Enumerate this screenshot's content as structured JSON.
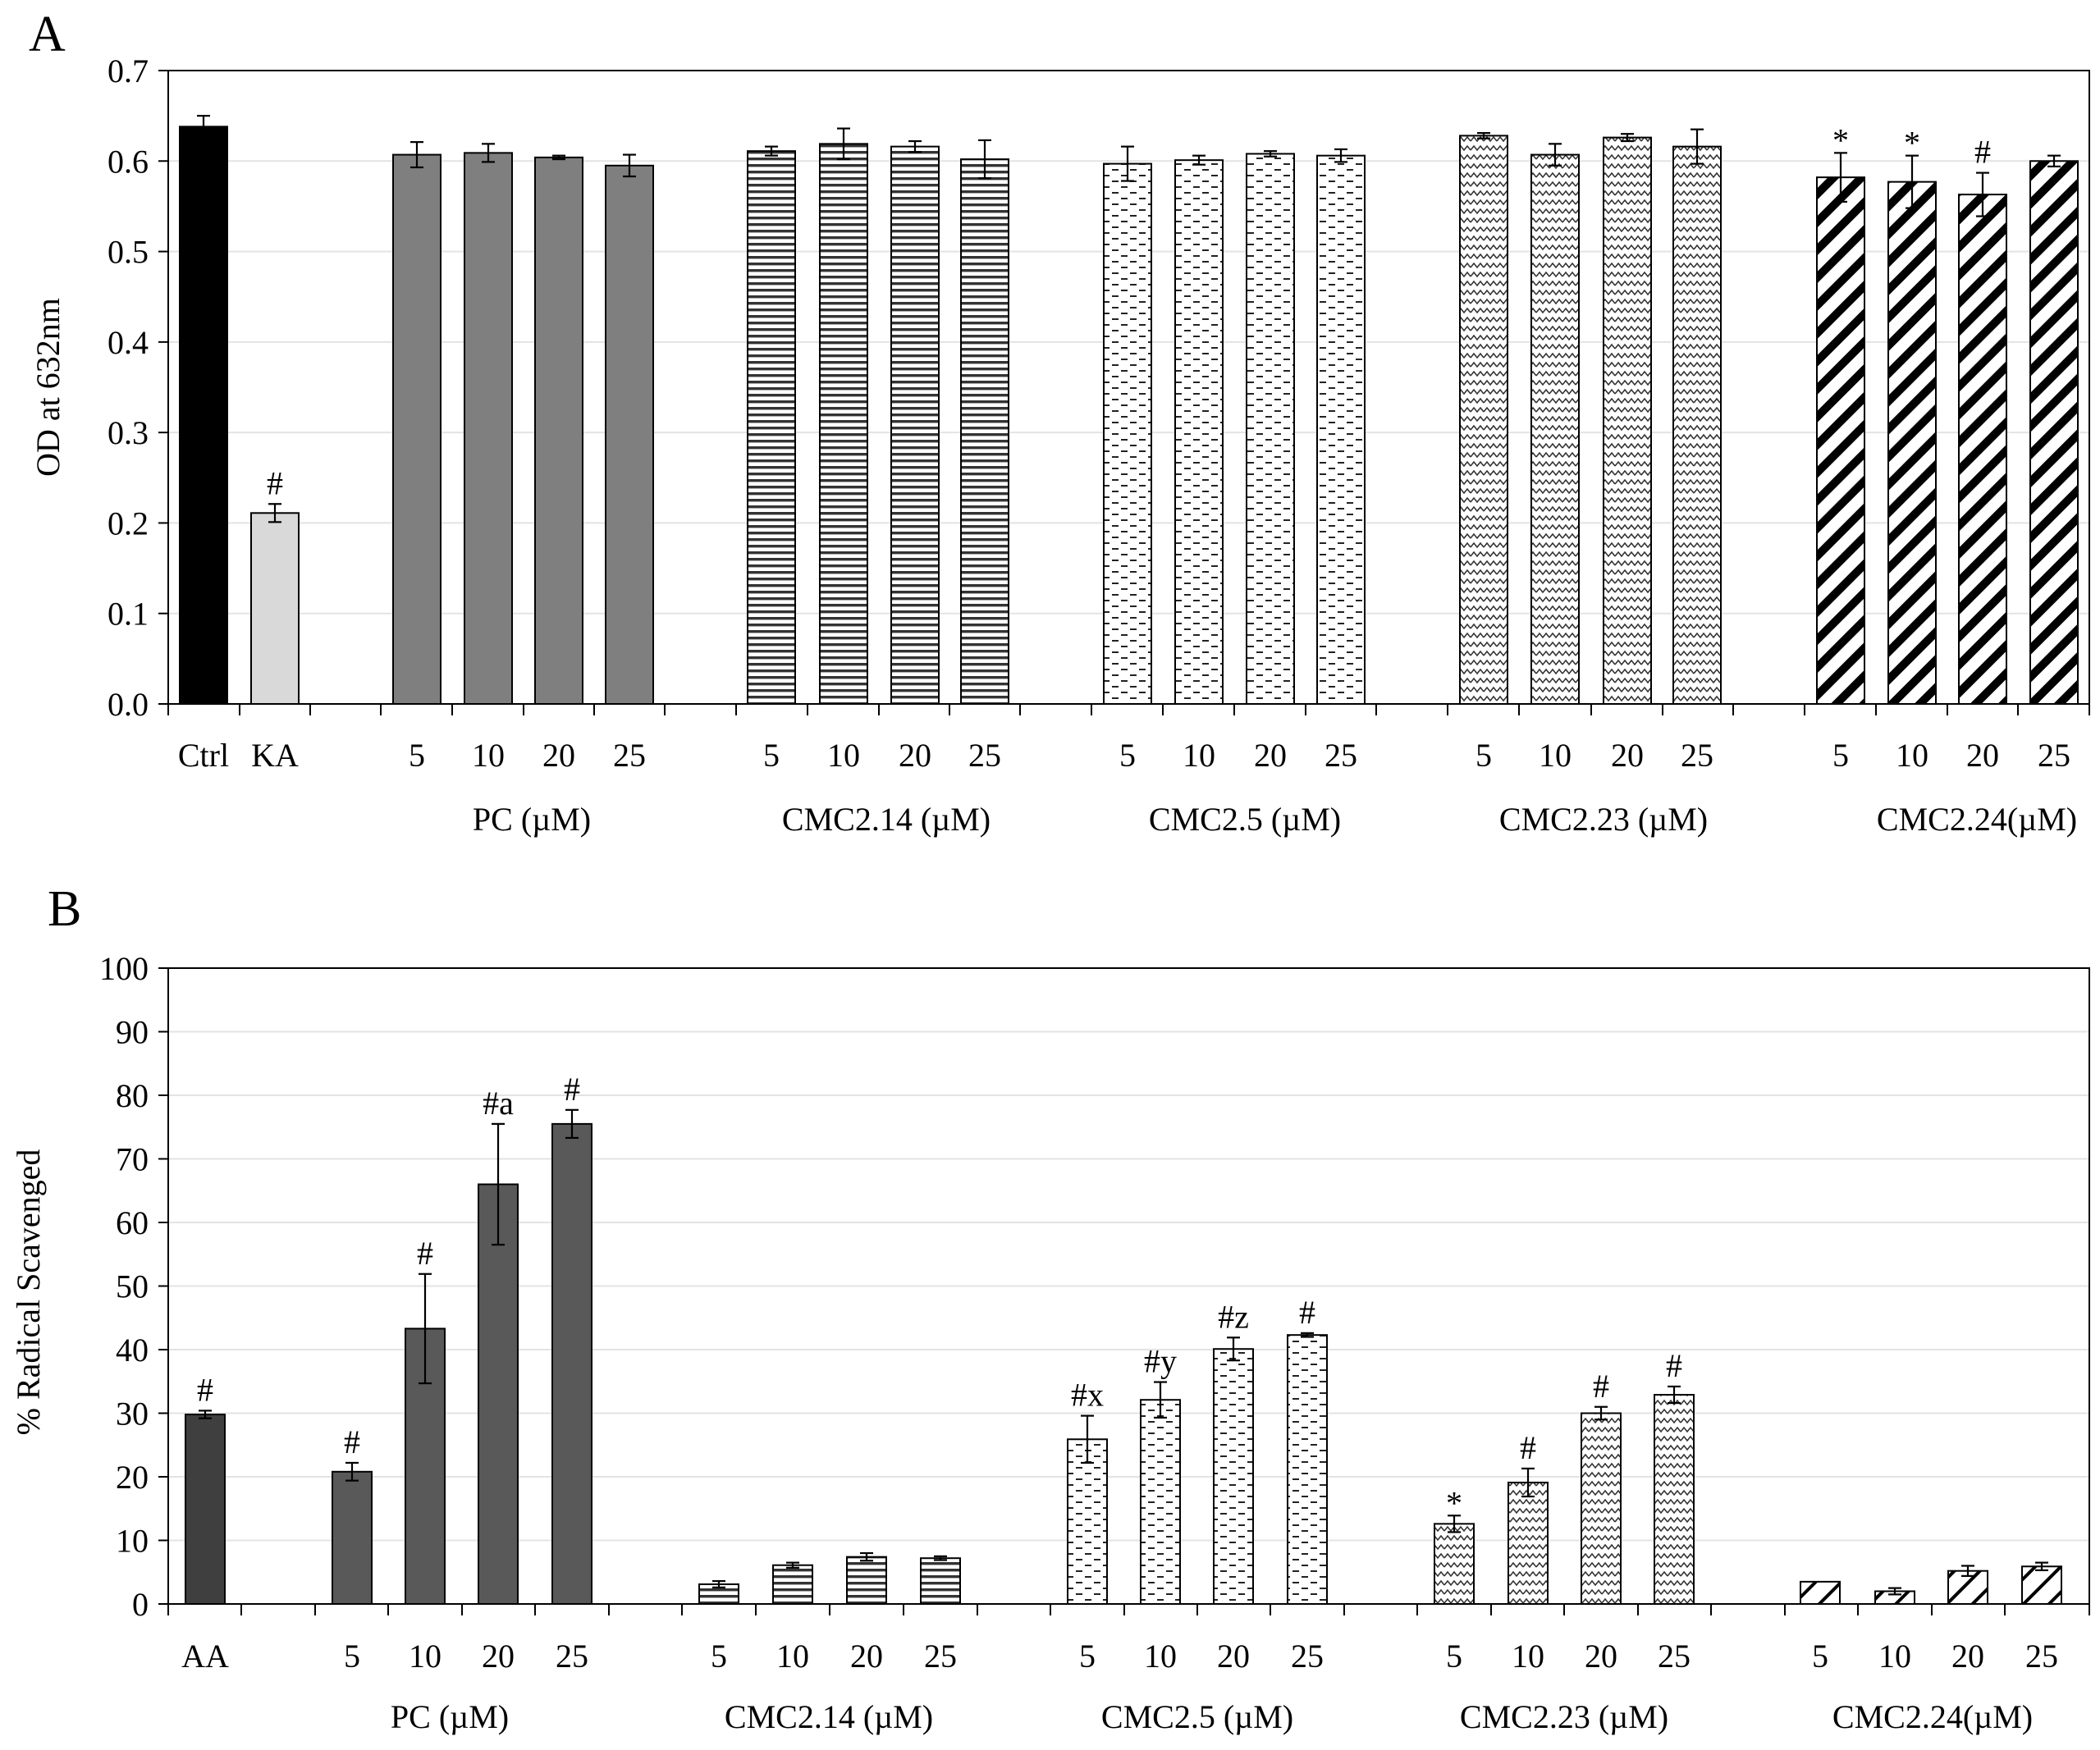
{
  "chart_data": [
    {
      "panel": "A",
      "type": "bar",
      "ylabel": "OD at 632nm",
      "ylim": [
        0,
        0.7
      ],
      "yticks": [
        "0.0",
        "0.1",
        "0.2",
        "0.3",
        "0.4",
        "0.5",
        "0.6",
        "0.7"
      ],
      "grid": true,
      "groups": [
        {
          "name": "",
          "style": "black",
          "bars": [
            {
              "label": "Ctrl",
              "value": 0.638,
              "error": 0.012,
              "annotation": ""
            }
          ]
        },
        {
          "name": "",
          "style": "lightgray",
          "bars": [
            {
              "label": "KA",
              "value": 0.211,
              "error": 0.01,
              "annotation": "#"
            }
          ]
        },
        {
          "name": "PC (µM)",
          "style": "gray",
          "bars": [
            {
              "label": "5",
              "value": 0.607,
              "error": 0.014,
              "annotation": ""
            },
            {
              "label": "10",
              "value": 0.609,
              "error": 0.01,
              "annotation": ""
            },
            {
              "label": "20",
              "value": 0.604,
              "error": 0.002,
              "annotation": ""
            },
            {
              "label": "25",
              "value": 0.595,
              "error": 0.012,
              "annotation": ""
            }
          ]
        },
        {
          "name": "CMC2.14 (µM)",
          "style": "hlines",
          "bars": [
            {
              "label": "5",
              "value": 0.611,
              "error": 0.005,
              "annotation": ""
            },
            {
              "label": "10",
              "value": 0.619,
              "error": 0.017,
              "annotation": ""
            },
            {
              "label": "20",
              "value": 0.616,
              "error": 0.006,
              "annotation": ""
            },
            {
              "label": "25",
              "value": 0.602,
              "error": 0.021,
              "annotation": ""
            }
          ]
        },
        {
          "name": "CMC2.5 (µM)",
          "style": "dashes",
          "bars": [
            {
              "label": "5",
              "value": 0.597,
              "error": 0.019,
              "annotation": ""
            },
            {
              "label": "10",
              "value": 0.601,
              "error": 0.005,
              "annotation": ""
            },
            {
              "label": "20",
              "value": 0.608,
              "error": 0.003,
              "annotation": ""
            },
            {
              "label": "25",
              "value": 0.606,
              "error": 0.007,
              "annotation": ""
            }
          ]
        },
        {
          "name": "CMC2.23 (µM)",
          "style": "zigzag",
          "bars": [
            {
              "label": "5",
              "value": 0.628,
              "error": 0.003,
              "annotation": ""
            },
            {
              "label": "10",
              "value": 0.607,
              "error": 0.012,
              "annotation": ""
            },
            {
              "label": "20",
              "value": 0.626,
              "error": 0.004,
              "annotation": ""
            },
            {
              "label": "25",
              "value": 0.616,
              "error": 0.019,
              "annotation": ""
            }
          ]
        },
        {
          "name": "CMC2.24(µM)",
          "style": "diagonal",
          "bars": [
            {
              "label": "5",
              "value": 0.582,
              "error": 0.027,
              "annotation": "*"
            },
            {
              "label": "10",
              "value": 0.577,
              "error": 0.029,
              "annotation": "*"
            },
            {
              "label": "20",
              "value": 0.563,
              "error": 0.024,
              "annotation": "#"
            },
            {
              "label": "25",
              "value": 0.6,
              "error": 0.006,
              "annotation": ""
            }
          ]
        }
      ]
    },
    {
      "panel": "B",
      "type": "bar",
      "ylabel": "% Radical Scavenged",
      "ylim": [
        0,
        100
      ],
      "yticks": [
        "0",
        "10",
        "20",
        "30",
        "40",
        "50",
        "60",
        "70",
        "80",
        "90",
        "100"
      ],
      "grid": true,
      "groups": [
        {
          "name": "",
          "style": "darkgray",
          "bars": [
            {
              "label": "AA",
              "value": 29.8,
              "error": 0.6,
              "annotation": "#"
            }
          ]
        },
        {
          "name": "PC (µM)",
          "style": "midgray",
          "bars": [
            {
              "label": "5",
              "value": 20.8,
              "error": 1.4,
              "annotation": "#"
            },
            {
              "label": "10",
              "value": 43.3,
              "error": 8.6,
              "annotation": "#"
            },
            {
              "label": "20",
              "value": 66.0,
              "error": 9.5,
              "annotation": "#a"
            },
            {
              "label": "25",
              "value": 75.5,
              "error": 2.2,
              "annotation": "#"
            }
          ]
        },
        {
          "name": "CMC2.14 (µM)",
          "style": "hlines",
          "bars": [
            {
              "label": "5",
              "value": 3.1,
              "error": 0.5,
              "annotation": ""
            },
            {
              "label": "10",
              "value": 6.1,
              "error": 0.4,
              "annotation": ""
            },
            {
              "label": "20",
              "value": 7.4,
              "error": 0.6,
              "annotation": ""
            },
            {
              "label": "25",
              "value": 7.2,
              "error": 0.3,
              "annotation": ""
            }
          ]
        },
        {
          "name": "CMC2.5 (µM)",
          "style": "dashes",
          "bars": [
            {
              "label": "5",
              "value": 25.9,
              "error": 3.7,
              "annotation": "#x"
            },
            {
              "label": "10",
              "value": 32.1,
              "error": 2.8,
              "annotation": "#y"
            },
            {
              "label": "20",
              "value": 40.1,
              "error": 1.8,
              "annotation": "#z"
            },
            {
              "label": "25",
              "value": 42.3,
              "error": 0.3,
              "annotation": "#"
            }
          ]
        },
        {
          "name": "CMC2.23 (µM)",
          "style": "zigzag",
          "bars": [
            {
              "label": "5",
              "value": 12.6,
              "error": 1.3,
              "annotation": "*"
            },
            {
              "label": "10",
              "value": 19.1,
              "error": 2.2,
              "annotation": "#"
            },
            {
              "label": "20",
              "value": 30.0,
              "error": 1.0,
              "annotation": "#"
            },
            {
              "label": "25",
              "value": 32.9,
              "error": 1.3,
              "annotation": "#"
            }
          ]
        },
        {
          "name": "CMC2.24(µM)",
          "style": "diagonal",
          "bars": [
            {
              "label": "5",
              "value": 3.5,
              "error": 0.0,
              "annotation": ""
            },
            {
              "label": "10",
              "value": 2.0,
              "error": 0.5,
              "annotation": ""
            },
            {
              "label": "20",
              "value": 5.2,
              "error": 0.8,
              "annotation": ""
            },
            {
              "label": "25",
              "value": 5.9,
              "error": 0.6,
              "annotation": ""
            }
          ]
        }
      ]
    }
  ]
}
